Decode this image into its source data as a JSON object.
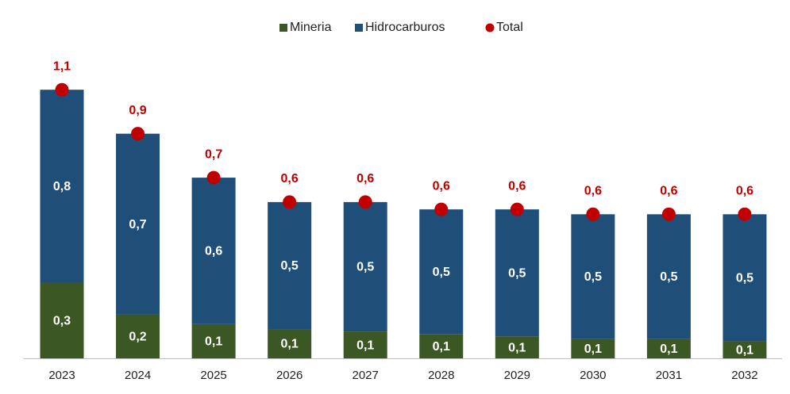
{
  "chart_data": {
    "type": "bar",
    "stacked": true,
    "categories": [
      "2023",
      "2024",
      "2025",
      "2026",
      "2027",
      "2028",
      "2029",
      "2030",
      "2031",
      "2032"
    ],
    "series": [
      {
        "name": "Mineria",
        "color": "#3b5723",
        "values": [
          0.31,
          0.18,
          0.14,
          0.12,
          0.11,
          0.1,
          0.09,
          0.08,
          0.08,
          0.07
        ],
        "value_labels": [
          "0,3",
          "0,2",
          "0,1",
          "0,1",
          "0,1",
          "0,1",
          "0,1",
          "0,1",
          "0,1",
          "0,1"
        ]
      },
      {
        "name": "Hidrocarburos",
        "color": "#1f4e79",
        "values": [
          0.79,
          0.74,
          0.6,
          0.52,
          0.53,
          0.51,
          0.52,
          0.51,
          0.51,
          0.52
        ],
        "value_labels": [
          "0,8",
          "0,7",
          "0,6",
          "0,5",
          "0,5",
          "0,5",
          "0,5",
          "0,5",
          "0,5",
          "0,5"
        ]
      },
      {
        "name": "Total",
        "type": "dot",
        "color": "#c00000",
        "values": [
          1.1,
          0.92,
          0.74,
          0.64,
          0.64,
          0.61,
          0.61,
          0.59,
          0.59,
          0.59
        ],
        "value_labels": [
          "1,1",
          "0,9",
          "0,7",
          "0,6",
          "0,6",
          "0,6",
          "0,6",
          "0,6",
          "0,6",
          "0,6"
        ]
      }
    ]
  }
}
